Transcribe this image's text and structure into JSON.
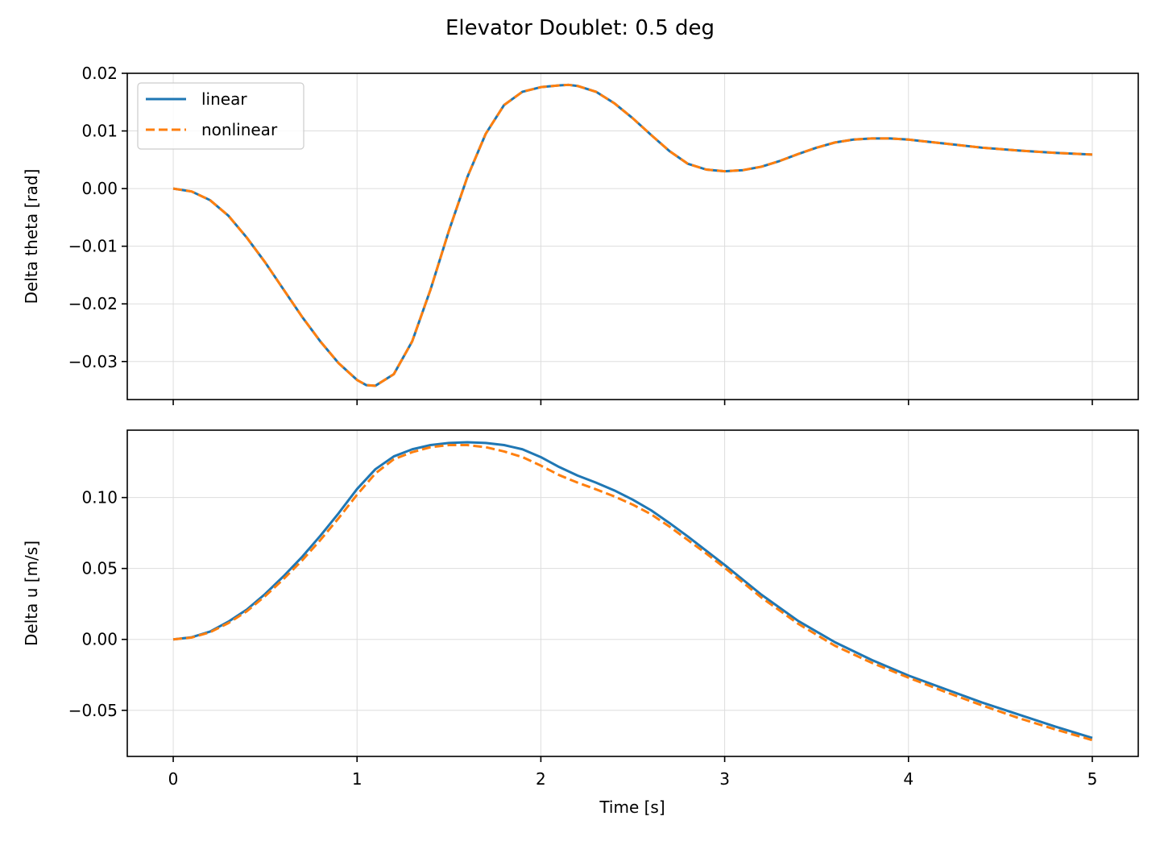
{
  "figure": {
    "title": "Elevator Doublet: 0.5 deg",
    "xlabel": "Time [s]"
  },
  "colors": {
    "linear": "#1f77b4",
    "nonlinear": "#ff7f0e",
    "grid": "#dddddd",
    "axes": "#000000"
  },
  "chart_data": [
    {
      "type": "line",
      "ylabel": "Delta theta [rad]",
      "xlim": [
        -0.25,
        5.25
      ],
      "ylim": [
        -0.0366,
        0.02
      ],
      "xticks": [
        0,
        1,
        2,
        3,
        4,
        5
      ],
      "xtick_labels": [],
      "yticks": [
        -0.03,
        -0.02,
        -0.01,
        0.0,
        0.01,
        0.02
      ],
      "ytick_labels": [
        "−0.03",
        "−0.02",
        "−0.01",
        "0.00",
        "0.01",
        "0.02"
      ],
      "grid": true,
      "legend": {
        "position": "top-left",
        "entries": [
          "linear",
          "nonlinear"
        ]
      },
      "x": [
        0,
        0.1,
        0.2,
        0.3,
        0.4,
        0.5,
        0.6,
        0.7,
        0.8,
        0.9,
        1.0,
        1.05,
        1.1,
        1.2,
        1.3,
        1.4,
        1.5,
        1.6,
        1.7,
        1.8,
        1.9,
        2.0,
        2.1,
        2.15,
        2.2,
        2.3,
        2.4,
        2.5,
        2.6,
        2.7,
        2.8,
        2.9,
        3.0,
        3.1,
        3.2,
        3.3,
        3.4,
        3.5,
        3.6,
        3.7,
        3.8,
        3.9,
        4.0,
        4.2,
        4.4,
        4.6,
        4.8,
        5.0
      ],
      "series": [
        {
          "name": "linear",
          "style": "solid",
          "values": [
            0.0,
            -0.0005,
            -0.002,
            -0.0047,
            -0.0085,
            -0.0128,
            -0.0175,
            -0.0222,
            -0.0265,
            -0.0303,
            -0.0332,
            -0.0341,
            -0.0342,
            -0.0322,
            -0.0265,
            -0.0175,
            -0.0073,
            0.002,
            0.0095,
            0.0145,
            0.0168,
            0.0176,
            0.0179,
            0.018,
            0.0178,
            0.0168,
            0.0148,
            0.0122,
            0.0093,
            0.0065,
            0.0043,
            0.0033,
            0.003,
            0.0032,
            0.0038,
            0.0048,
            0.006,
            0.0071,
            0.008,
            0.0085,
            0.0087,
            0.0087,
            0.0085,
            0.0078,
            0.0071,
            0.0066,
            0.0062,
            0.0059
          ]
        },
        {
          "name": "nonlinear",
          "style": "dashed",
          "values": [
            0.0,
            -0.0005,
            -0.002,
            -0.0047,
            -0.0085,
            -0.0128,
            -0.0175,
            -0.0222,
            -0.0265,
            -0.0303,
            -0.0332,
            -0.0341,
            -0.0342,
            -0.0322,
            -0.0265,
            -0.0175,
            -0.0073,
            0.002,
            0.0095,
            0.0145,
            0.0168,
            0.0176,
            0.0179,
            0.018,
            0.0178,
            0.0168,
            0.0148,
            0.0122,
            0.0093,
            0.0065,
            0.0043,
            0.0033,
            0.003,
            0.0032,
            0.0038,
            0.0048,
            0.006,
            0.0071,
            0.008,
            0.0085,
            0.0087,
            0.0087,
            0.0085,
            0.0078,
            0.0071,
            0.0066,
            0.0062,
            0.0059
          ]
        }
      ]
    },
    {
      "type": "line",
      "ylabel": "Delta u [m/s]",
      "xlim": [
        -0.25,
        5.25
      ],
      "ylim": [
        -0.0825,
        0.1475
      ],
      "xticks": [
        0,
        1,
        2,
        3,
        4,
        5
      ],
      "xtick_labels": [
        "0",
        "1",
        "2",
        "3",
        "4",
        "5"
      ],
      "yticks": [
        -0.05,
        0.0,
        0.05,
        0.1
      ],
      "ytick_labels": [
        "−0.05",
        "0.00",
        "0.05",
        "0.10"
      ],
      "grid": true,
      "x": [
        0,
        0.1,
        0.2,
        0.3,
        0.4,
        0.5,
        0.6,
        0.7,
        0.8,
        0.9,
        1.0,
        1.1,
        1.2,
        1.3,
        1.4,
        1.5,
        1.6,
        1.7,
        1.8,
        1.9,
        2.0,
        2.1,
        2.2,
        2.3,
        2.4,
        2.5,
        2.6,
        2.7,
        2.8,
        2.9,
        3.0,
        3.2,
        3.4,
        3.6,
        3.8,
        4.0,
        4.2,
        4.4,
        4.6,
        4.8,
        5.0
      ],
      "series": [
        {
          "name": "linear",
          "style": "solid",
          "values": [
            0.0,
            0.0015,
            0.0055,
            0.0125,
            0.021,
            0.032,
            0.0445,
            0.058,
            0.073,
            0.089,
            0.106,
            0.12,
            0.129,
            0.134,
            0.137,
            0.1385,
            0.139,
            0.1385,
            0.137,
            0.134,
            0.1285,
            0.1215,
            0.1155,
            0.1105,
            0.105,
            0.0985,
            0.091,
            0.082,
            0.0725,
            0.0625,
            0.0525,
            0.0315,
            0.013,
            -0.002,
            -0.0145,
            -0.0255,
            -0.035,
            -0.0445,
            -0.053,
            -0.0615,
            -0.0695
          ]
        },
        {
          "name": "nonlinear",
          "style": "dashed",
          "values": [
            0.0,
            0.0013,
            0.005,
            0.0115,
            0.0198,
            0.0305,
            0.0425,
            0.0555,
            0.07,
            0.0855,
            0.102,
            0.117,
            0.127,
            0.132,
            0.1355,
            0.137,
            0.137,
            0.1355,
            0.1325,
            0.1285,
            0.1225,
            0.1158,
            0.1105,
            0.1058,
            0.1008,
            0.095,
            0.0882,
            0.0795,
            0.07,
            0.0605,
            0.0505,
            0.0295,
            0.011,
            -0.0045,
            -0.0165,
            -0.027,
            -0.037,
            -0.0465,
            -0.0555,
            -0.0635,
            -0.071
          ]
        }
      ]
    }
  ]
}
